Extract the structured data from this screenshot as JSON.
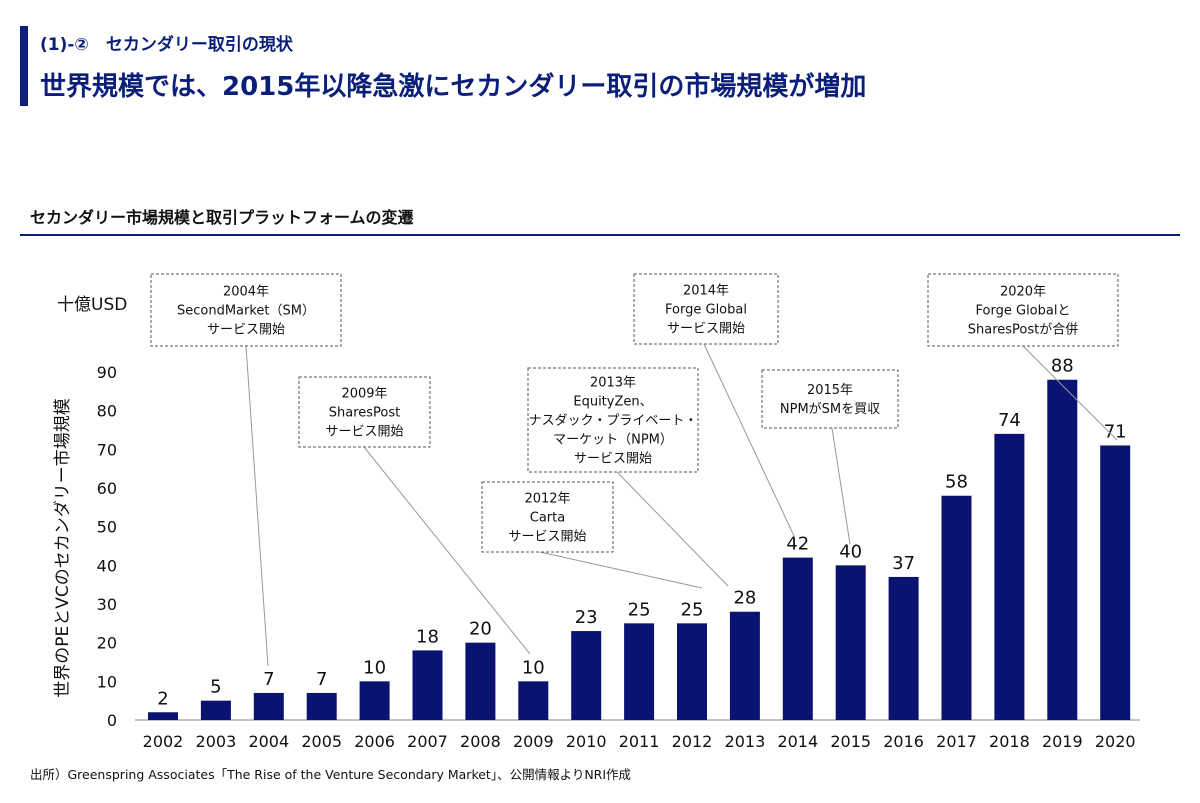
{
  "header": {
    "subheading": "(1)-②　セカンダリー取引の現状",
    "title": "世界規模では、2015年以降急激にセカンダリー取引の市場規模が増加"
  },
  "section": {
    "title": "セカンダリー市場規模と取引プラットフォームの変遷"
  },
  "source": "出所）Greenspring Associates「The Rise of the Venture Secondary Market」、公開情報よりNRI作成",
  "chart_data": {
    "type": "bar",
    "title": "",
    "unit_label": "十億USD",
    "ylabel": "世界のPEとVCのセカンダリー市場規模",
    "xlabel": "",
    "ylim": [
      0,
      90
    ],
    "yticks": [
      0,
      10,
      20,
      30,
      40,
      50,
      60,
      70,
      80,
      90
    ],
    "grid": false,
    "bar_color": "#0a1372",
    "categories": [
      "2002",
      "2003",
      "2004",
      "2005",
      "2006",
      "2007",
      "2008",
      "2009",
      "2010",
      "2011",
      "2012",
      "2013",
      "2014",
      "2015",
      "2016",
      "2017",
      "2018",
      "2019",
      "2020"
    ],
    "values": [
      2,
      5,
      7,
      7,
      10,
      18,
      20,
      10,
      23,
      25,
      25,
      28,
      42,
      40,
      37,
      58,
      74,
      88,
      71
    ],
    "annotations": [
      {
        "lines": [
          "2004年",
          "SecondMarket（SM）",
          "サービス開始"
        ],
        "year": "2004"
      },
      {
        "lines": [
          "2009年",
          "SharesPost",
          "サービス開始"
        ],
        "year": "2009"
      },
      {
        "lines": [
          "2012年",
          "Carta",
          "サービス開始"
        ],
        "year": "2012"
      },
      {
        "lines": [
          "2013年",
          "EquityZen、",
          "ナスダック・プライベート・",
          "マーケット（NPM）",
          "サービス開始"
        ],
        "year": "2013"
      },
      {
        "lines": [
          "2014年",
          "Forge Global",
          "サービス開始"
        ],
        "year": "2014"
      },
      {
        "lines": [
          "2015年",
          "NPMがSMを買収"
        ],
        "year": "2015"
      },
      {
        "lines": [
          "2020年",
          "Forge Globalと",
          "SharesPostが合併"
        ],
        "year": "2020"
      }
    ]
  }
}
